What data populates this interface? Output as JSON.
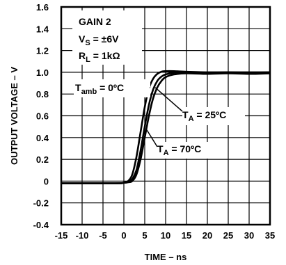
{
  "chart_data": {
    "type": "line",
    "xlabel": "TIME – ns",
    "ylabel": "OUTPUT VOLTAGE – V",
    "xlim": [
      -15,
      35
    ],
    "ylim": [
      -0.4,
      1.6
    ],
    "xticks": [
      -15,
      -10,
      -5,
      0,
      5,
      10,
      15,
      20,
      25,
      30,
      35
    ],
    "yticks": [
      1.6,
      1.4,
      1.2,
      1.0,
      0.8,
      0.6,
      0.4,
      0.2,
      0,
      -0.2,
      -0.4
    ],
    "xtick_labels": [
      "-15",
      "-10",
      "-5",
      "0",
      "5",
      "10",
      "15",
      "20",
      "25",
      "30",
      "35"
    ],
    "ytick_labels": [
      "1.6",
      "1.4",
      "1.2",
      "1.0",
      "0.8",
      "0.6",
      "0.4",
      "0.2",
      "0",
      "-0.2",
      "-0.4"
    ],
    "grid": true,
    "annotations": {
      "gain": "GAIN 2",
      "vs_main": "V",
      "vs_sub": "S",
      "vs_rest": " = ±6V",
      "rl_main": "R",
      "rl_sub": "L",
      "rl_rest": " = 1kΩ",
      "tamb_main": "T",
      "tamb_sub": "amb",
      "tamb_rest": " = 0ºC",
      "ta25_main": "T",
      "ta25_sub": "A",
      "ta25_rest": " = 25ºC",
      "ta70_main": "T",
      "ta70_sub": "A",
      "ta70_rest": " = 70ºC"
    },
    "series": [
      {
        "x": [
          -15,
          -2,
          0,
          1,
          2,
          3,
          4,
          5,
          6,
          7,
          8,
          9,
          10,
          12,
          15,
          20,
          25,
          30,
          35
        ],
        "y": [
          -0.02,
          -0.02,
          -0.015,
          0.0,
          0.06,
          0.22,
          0.45,
          0.68,
          0.85,
          0.94,
          0.985,
          1.005,
          1.01,
          1.01,
          1.005,
          1.0,
          1.0,
          1.0,
          1.0
        ]
      },
      {
        "x": [
          -15,
          -2,
          0,
          1,
          2,
          3,
          4,
          5,
          6,
          7,
          8,
          9,
          10,
          12,
          15,
          20,
          25,
          30,
          35
        ],
        "y": [
          -0.02,
          -0.02,
          -0.015,
          -0.01,
          0.02,
          0.1,
          0.28,
          0.5,
          0.7,
          0.84,
          0.92,
          0.96,
          0.98,
          0.995,
          1.0,
          0.995,
          1.0,
          0.995,
          1.0
        ]
      },
      {
        "x": [
          -15,
          -2,
          0,
          1,
          2,
          3,
          4,
          5,
          6,
          7,
          8,
          9,
          10,
          12,
          15,
          20,
          25,
          30,
          35
        ],
        "y": [
          -0.02,
          -0.02,
          -0.015,
          -0.01,
          0.0,
          0.06,
          0.2,
          0.4,
          0.6,
          0.76,
          0.86,
          0.92,
          0.955,
          0.98,
          0.99,
          0.985,
          0.99,
          0.985,
          0.99
        ]
      }
    ]
  }
}
